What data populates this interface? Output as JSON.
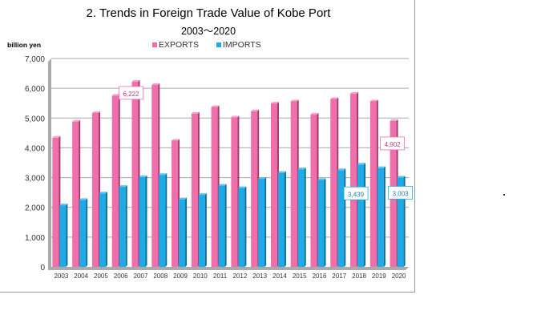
{
  "chart_data": {
    "type": "bar",
    "title": "2. Trends in Foreign Trade Value of Kobe Port",
    "subtitle": "2003～2020",
    "ylabel": "billion yen",
    "ylim": [
      0,
      7000
    ],
    "yticks": [
      "0",
      "1,000",
      "2,000",
      "3,000",
      "4,000",
      "5,000",
      "6,000",
      "7,000"
    ],
    "grid": true,
    "legend": "top",
    "categories": [
      "2003",
      "2004",
      "2005",
      "2006",
      "2007",
      "2008",
      "2009",
      "2010",
      "2011",
      "2012",
      "2013",
      "2014",
      "2015",
      "2016",
      "2017",
      "2018",
      "2019",
      "2020"
    ],
    "series": [
      {
        "name": "EXPORTS",
        "color": "#f06eaa",
        "values": [
          4340,
          4880,
          5170,
          5750,
          6222,
          6110,
          4240,
          5150,
          5370,
          5020,
          5230,
          5490,
          5560,
          5120,
          5640,
          5820,
          5560,
          4902
        ]
      },
      {
        "name": "IMPORTS",
        "color": "#1eaae6",
        "values": [
          2070,
          2250,
          2470,
          2690,
          3020,
          3090,
          2270,
          2420,
          2730,
          2650,
          2960,
          3160,
          3280,
          2920,
          3250,
          3439,
          3320,
          3003
        ]
      }
    ],
    "data_labels": [
      {
        "series": 0,
        "category": "2007",
        "text": "6,222"
      },
      {
        "series": 0,
        "category": "2020",
        "text": "4,902"
      },
      {
        "series": 1,
        "category": "2018",
        "text": "3,439"
      },
      {
        "series": 1,
        "category": "2020",
        "text": "3,003"
      }
    ]
  }
}
